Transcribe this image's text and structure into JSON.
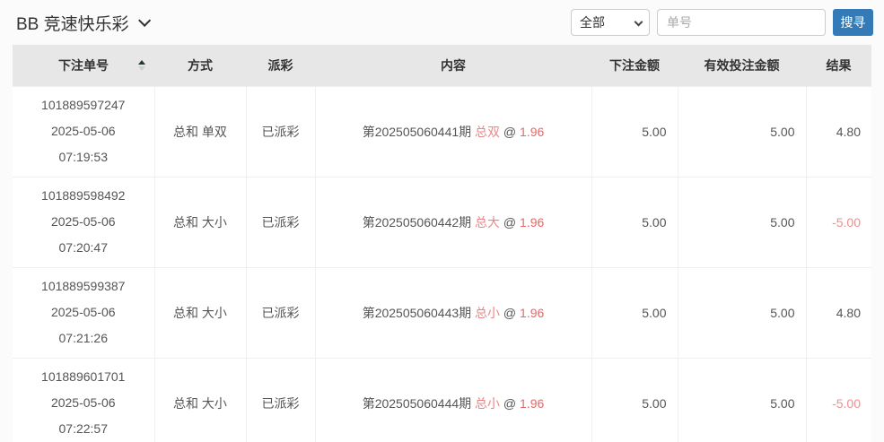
{
  "page": {
    "title": "BB 竞速快乐彩"
  },
  "toolbar": {
    "filter_value": "全部",
    "search_placeholder": "单号",
    "search_label": "搜寻"
  },
  "colors": {
    "accent_blue": "#337ab7",
    "header_bg": "#e7e7e7",
    "pick_red": "#ec8585",
    "odds_red": "#e26a6a",
    "negative_red": "#ef8f8f"
  },
  "table": {
    "headers": [
      "下注单号",
      "方式",
      "派彩",
      "内容",
      "下注金额",
      "有效投注金额",
      "结果"
    ],
    "sort_column": "下注单号",
    "rows": [
      {
        "id": "101889597247",
        "date": "2025-05-06",
        "time": "07:19:53",
        "method": "总和 单双",
        "payout": "已派彩",
        "period": "第202505060441期",
        "pick": "总双",
        "at": "@",
        "odds": "1.96",
        "bet_amount": "5.00",
        "valid_amount": "5.00",
        "result": "4.80"
      },
      {
        "id": "101889598492",
        "date": "2025-05-06",
        "time": "07:20:47",
        "method": "总和 大小",
        "payout": "已派彩",
        "period": "第202505060442期",
        "pick": "总大",
        "at": "@",
        "odds": "1.96",
        "bet_amount": "5.00",
        "valid_amount": "5.00",
        "result": "-5.00"
      },
      {
        "id": "101889599387",
        "date": "2025-05-06",
        "time": "07:21:26",
        "method": "总和 大小",
        "payout": "已派彩",
        "period": "第202505060443期",
        "pick": "总小",
        "at": "@",
        "odds": "1.96",
        "bet_amount": "5.00",
        "valid_amount": "5.00",
        "result": "4.80"
      },
      {
        "id": "101889601701",
        "date": "2025-05-06",
        "time": "07:22:57",
        "method": "总和 大小",
        "payout": "已派彩",
        "period": "第202505060444期",
        "pick": "总小",
        "at": "@",
        "odds": "1.96",
        "bet_amount": "5.00",
        "valid_amount": "5.00",
        "result": "-5.00"
      }
    ]
  }
}
